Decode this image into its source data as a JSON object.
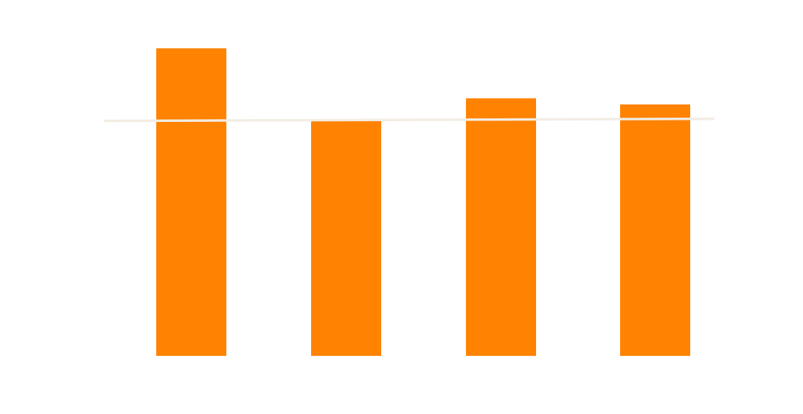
{
  "chart_data": {
    "type": "bar",
    "categories": [
      "",
      "",
      "",
      ""
    ],
    "values": [
      4.0,
      3.06,
      3.35,
      3.27
    ],
    "reference_line": 3.07,
    "ylim": [
      0,
      4.0
    ],
    "title": "",
    "xlabel": "",
    "ylabel": "",
    "grid": false,
    "legend": "none",
    "colors": {
      "bar": "#ff8200",
      "reference_line": "#f2ece3",
      "background": "#ffffff"
    }
  }
}
